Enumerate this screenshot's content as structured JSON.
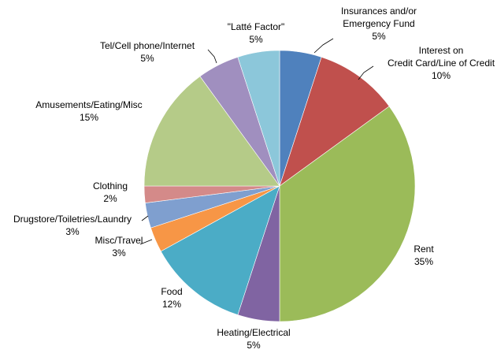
{
  "chart_data": {
    "type": "pie",
    "title": "",
    "start_angle_deg": 0,
    "direction": "clockwise",
    "slices": [
      {
        "label": [
          "Insurances and/or",
          "Emergency Fund"
        ],
        "value": 5,
        "pct_label": "5%",
        "color": "#4F81BD"
      },
      {
        "label": [
          "Interest on",
          "Credit Card/Line of Credit"
        ],
        "value": 10,
        "pct_label": "10%",
        "color": "#C0504D"
      },
      {
        "label": [
          "Rent"
        ],
        "value": 35,
        "pct_label": "35%",
        "color": "#9BBB59"
      },
      {
        "label": [
          "Heating/Electrical"
        ],
        "value": 5,
        "pct_label": "5%",
        "color": "#8064A2"
      },
      {
        "label": [
          "Food"
        ],
        "value": 12,
        "pct_label": "12%",
        "color": "#4BACC6"
      },
      {
        "label": [
          "Misc/Travel"
        ],
        "value": 3,
        "pct_label": "3%",
        "color": "#F79646"
      },
      {
        "label": [
          "Drugstore/Toiletries/Laundry"
        ],
        "value": 3,
        "pct_label": "3%",
        "color": "#7F9FCF"
      },
      {
        "label": [
          "Clothing"
        ],
        "value": 2,
        "pct_label": "2%",
        "color": "#D48A89"
      },
      {
        "label": [
          "Amusements/Eating/Misc"
        ],
        "value": 15,
        "pct_label": "15%",
        "color": "#B5CB88"
      },
      {
        "label": [
          "Tel/Cell phone/Internet"
        ],
        "value": 5,
        "pct_label": "5%",
        "color": "#A08FBF"
      },
      {
        "label": [
          "\"Latté Factor\""
        ],
        "value": 5,
        "pct_label": "5%",
        "color": "#8CC7DA"
      }
    ]
  }
}
